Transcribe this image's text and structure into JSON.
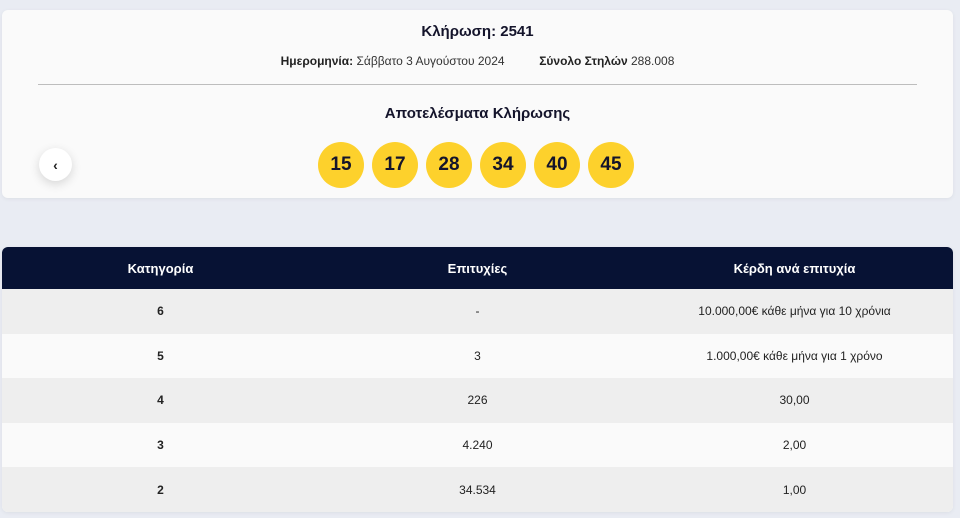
{
  "draw": {
    "title": "Κλήρωση: 2541",
    "date_label": "Ημερομηνία:",
    "date_value": "Σάββατο 3 Αυγούστου 2024",
    "columns_label": "Σύνολο Στηλών",
    "columns_value": "288.008",
    "results_title": "Αποτελέσματα Κλήρωσης",
    "prev_glyph": "‹",
    "numbers": [
      "15",
      "17",
      "28",
      "34",
      "40",
      "45"
    ]
  },
  "table": {
    "headers": [
      "Κατηγορία",
      "Επιτυχίες",
      "Κέρδη ανά επιτυχία"
    ],
    "rows": [
      [
        "6",
        "-",
        "10.000,00€ κάθε μήνα για 10 χρόνια"
      ],
      [
        "5",
        "3",
        "1.000,00€ κάθε μήνα για 1 χρόνο"
      ],
      [
        "4",
        "226",
        "30,00"
      ],
      [
        "3",
        "4.240",
        "2,00"
      ],
      [
        "2",
        "34.534",
        "1,00"
      ]
    ]
  },
  "colors": {
    "ball": "#fdd12c",
    "header_bg": "#071234",
    "page_bg": "#e9ecf3"
  }
}
